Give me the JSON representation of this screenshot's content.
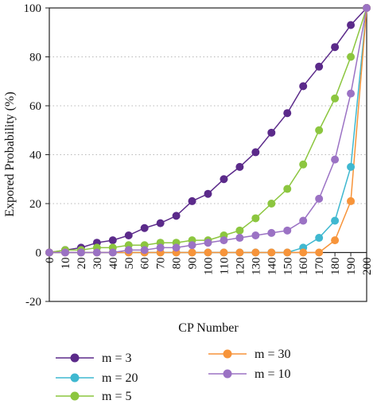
{
  "chart_data": {
    "type": "line",
    "xlabel": "CP Number",
    "ylabel": "Expored Probability (%)",
    "xlim": [
      0,
      200
    ],
    "ylim": [
      -20,
      100
    ],
    "x_ticks": [
      0,
      10,
      20,
      30,
      40,
      50,
      60,
      70,
      80,
      90,
      100,
      110,
      120,
      130,
      140,
      150,
      160,
      170,
      180,
      190,
      200
    ],
    "y_ticks": [
      -20,
      0,
      20,
      40,
      60,
      80,
      100
    ],
    "grid": "horizontal dotted",
    "legend_position": "bottom",
    "x": [
      0,
      10,
      20,
      30,
      40,
      50,
      60,
      70,
      80,
      90,
      100,
      110,
      120,
      130,
      140,
      150,
      160,
      170,
      180,
      190,
      200
    ],
    "series": [
      {
        "name": "m = 3",
        "color": "#5b2a8a",
        "values": [
          0,
          1,
          2,
          4,
          5,
          7,
          10,
          12,
          15,
          21,
          24,
          30,
          35,
          41,
          49,
          57,
          68,
          76,
          84,
          93,
          100
        ]
      },
      {
        "name": "m = 20",
        "color": "#3fb8d0",
        "values": [
          0,
          0,
          0,
          0,
          0,
          0,
          0,
          0,
          0,
          0,
          0,
          0,
          0,
          0,
          0,
          0,
          2,
          6,
          13,
          35,
          100
        ]
      },
      {
        "name": "m = 5",
        "color": "#8cc63f",
        "values": [
          0,
          1,
          1,
          2,
          2,
          3,
          3,
          4,
          4,
          5,
          5,
          7,
          9,
          14,
          20,
          26,
          36,
          50,
          63,
          80,
          100
        ]
      },
      {
        "name": "m = 30",
        "color": "#f7943a",
        "values": [
          0,
          0,
          0,
          0,
          0,
          0,
          0,
          0,
          0,
          0,
          0,
          0,
          0,
          0,
          0,
          0,
          0,
          0,
          5,
          21,
          100
        ]
      },
      {
        "name": "m = 10",
        "color": "#9b72c4",
        "values": [
          0,
          0,
          0,
          0,
          0,
          1,
          1,
          2,
          2,
          3,
          4,
          5,
          6,
          7,
          8,
          9,
          13,
          22,
          38,
          65,
          100
        ]
      }
    ]
  }
}
